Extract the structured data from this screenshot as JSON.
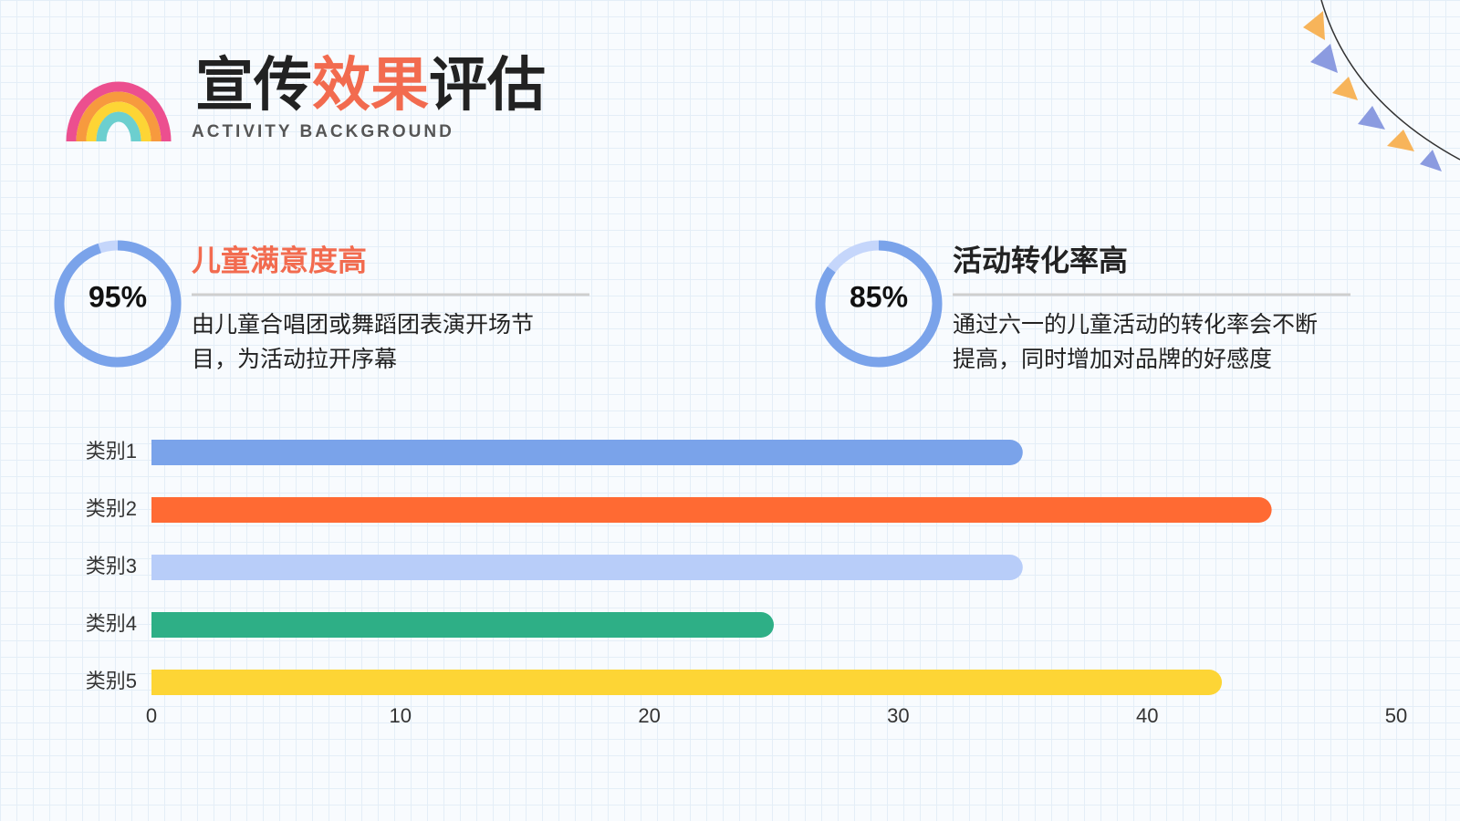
{
  "header": {
    "title": [
      {
        "text": "宣传",
        "color": "#222222"
      },
      {
        "text": "效果",
        "color": "#f26b4f"
      },
      {
        "text": "评估",
        "color": "#222222"
      }
    ],
    "subtitle": "ACTIVITY BACKGROUND"
  },
  "stats": [
    {
      "value": 95,
      "label": "95%",
      "title": "儿童满意度高",
      "title_color": "#f26b4f",
      "description": "由儿童合唱团或舞蹈团表演开场节目，为活动拉开序幕"
    },
    {
      "value": 85,
      "label": "85%",
      "title": "活动转化率高",
      "title_color": "#222222",
      "description": "通过六一的儿童活动的转化率会不断提高，同时增加对品牌的好感度"
    }
  ],
  "chart_data": {
    "type": "bar",
    "orientation": "horizontal",
    "categories": [
      "类别1",
      "类别2",
      "类别3",
      "类别4",
      "类别5"
    ],
    "values": [
      35,
      45,
      35,
      25,
      43
    ],
    "colors": [
      "#7aa3ea",
      "#ff6a33",
      "#b8cdf9",
      "#2eaf86",
      "#fdd535"
    ],
    "xlim": [
      0,
      50
    ],
    "xticks": [
      0,
      10,
      20,
      30,
      40,
      50
    ],
    "grid": false
  }
}
